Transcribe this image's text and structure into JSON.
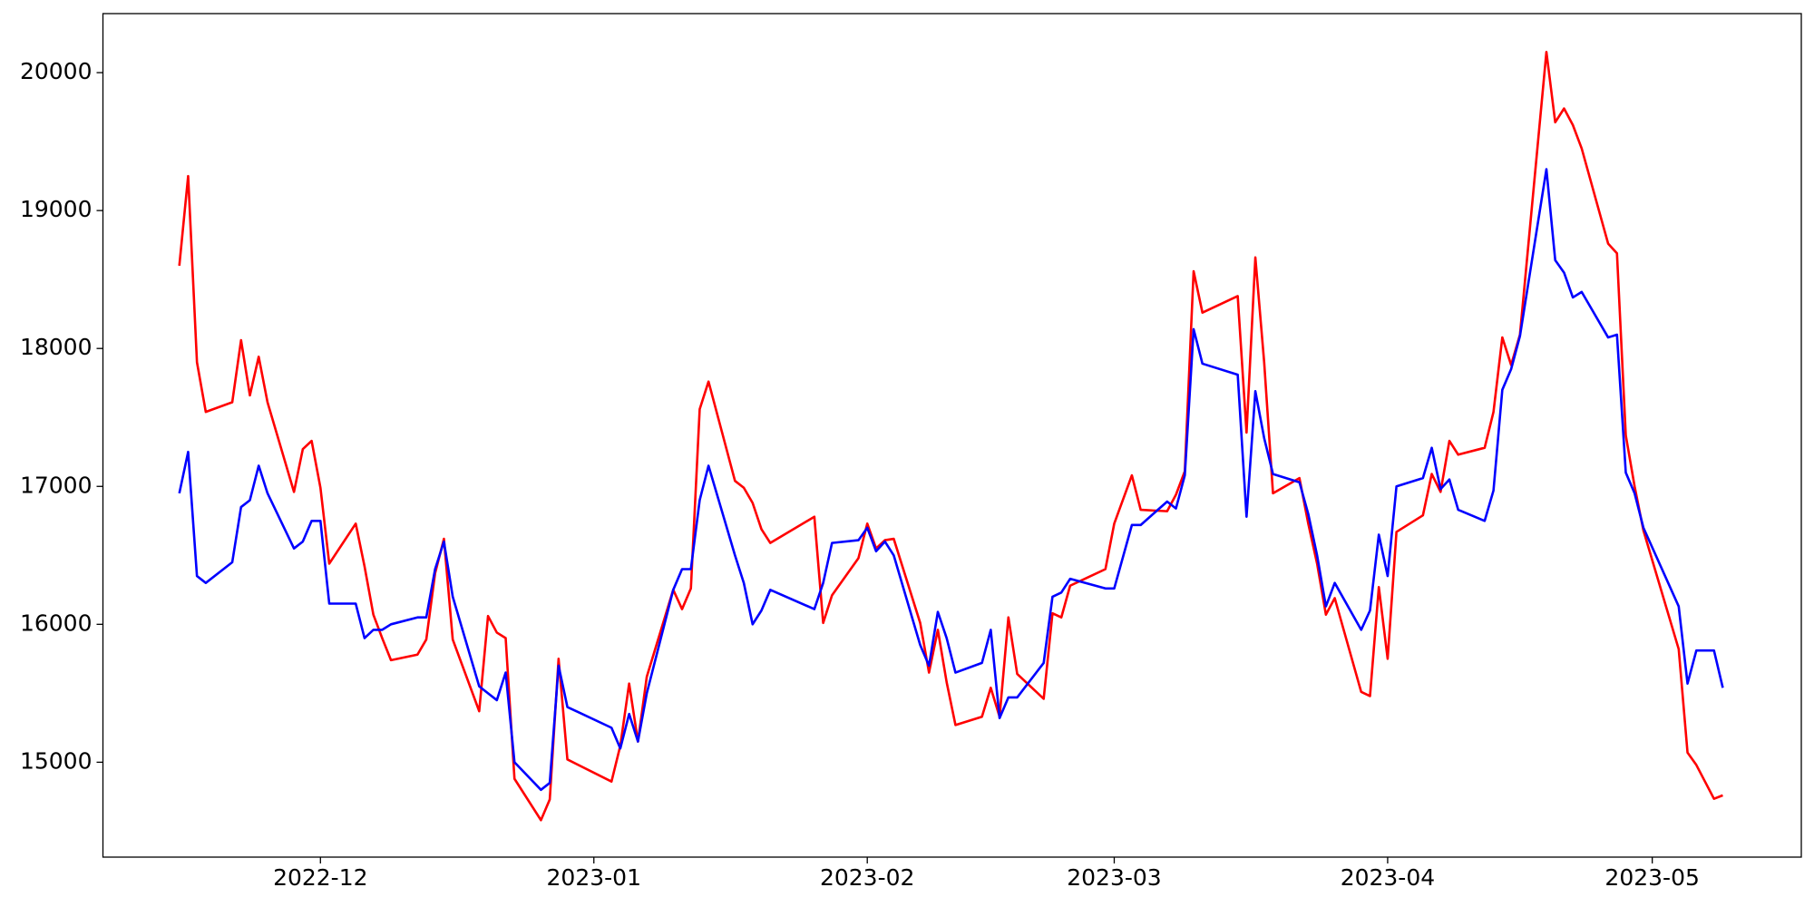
{
  "chart_data": {
    "type": "line",
    "x": [
      -16,
      -15,
      -14,
      -13,
      -10,
      -9,
      -8,
      -7,
      -6,
      -3,
      -2,
      -1,
      0,
      1,
      4,
      5,
      6,
      7,
      8,
      11,
      12,
      13,
      14,
      15,
      18,
      19,
      20,
      21,
      22,
      25,
      26,
      27,
      28,
      33,
      34,
      35,
      36,
      37,
      40,
      41,
      42,
      43,
      44,
      47,
      48,
      49,
      50,
      51,
      56,
      57,
      58,
      61,
      62,
      63,
      64,
      65,
      68,
      69,
      70,
      71,
      72,
      75,
      76,
      77,
      78,
      79,
      82,
      83,
      84,
      85,
      89,
      90,
      92,
      93,
      96,
      97,
      98,
      99,
      100,
      104,
      105,
      106,
      107,
      108,
      111,
      112,
      113,
      114,
      115,
      118,
      119,
      120,
      121,
      122,
      125,
      126,
      127,
      128,
      129,
      132,
      133,
      134,
      135,
      136,
      139,
      140,
      141,
      142,
      143,
      146,
      147,
      148,
      149,
      150,
      154,
      155,
      156,
      158,
      159
    ],
    "series": [
      {
        "color": "#ff0000",
        "values": [
          18600,
          19250,
          17900,
          17540,
          17610,
          18060,
          17660,
          17940,
          17610,
          16960,
          17270,
          17330,
          16990,
          16440,
          16730,
          16420,
          16070,
          15900,
          15740,
          15780,
          15890,
          16370,
          16620,
          15890,
          15370,
          16060,
          15940,
          15900,
          14880,
          14580,
          14730,
          15750,
          15020,
          14860,
          15120,
          15570,
          15150,
          15620,
          16250,
          16110,
          16260,
          17560,
          17760,
          17040,
          16990,
          16880,
          16690,
          16590,
          16780,
          16010,
          16210,
          16480,
          16730,
          16550,
          16610,
          16620,
          16010,
          15650,
          15960,
          15580,
          15270,
          15330,
          15540,
          15330,
          16050,
          15640,
          15460,
          16080,
          16050,
          16280,
          16400,
          16730,
          17080,
          16830,
          16820,
          16940,
          17110,
          18560,
          18260,
          18380,
          17390,
          18660,
          17900,
          16950,
          17060,
          16730,
          16440,
          16070,
          16190,
          15510,
          15480,
          16270,
          15750,
          16670,
          16790,
          17090,
          16960,
          17330,
          17230,
          17280,
          17540,
          18080,
          17880,
          18100,
          20150,
          19640,
          19740,
          19620,
          19450,
          18760,
          18690,
          17370,
          17000,
          16680,
          15820,
          15070,
          14980,
          14735,
          14760
        ]
      },
      {
        "color": "#0000ff",
        "values": [
          16950,
          17250,
          16350,
          16300,
          16450,
          16850,
          16900,
          17150,
          16950,
          16550,
          16600,
          16750,
          16750,
          16150,
          16150,
          15900,
          15960,
          15960,
          16000,
          16050,
          16050,
          16400,
          16600,
          16200,
          15550,
          15500,
          15450,
          15650,
          15000,
          14800,
          14850,
          15700,
          15400,
          15250,
          15100,
          15350,
          15150,
          15500,
          16250,
          16400,
          16400,
          16900,
          17150,
          16500,
          16300,
          16000,
          16100,
          16250,
          16110,
          16300,
          16590,
          16610,
          16700,
          16530,
          16600,
          16500,
          15850,
          15700,
          16090,
          15900,
          15650,
          15720,
          15960,
          15320,
          15470,
          15470,
          15720,
          16200,
          16230,
          16330,
          16260,
          16260,
          16720,
          16720,
          16890,
          16840,
          17080,
          18140,
          17890,
          17810,
          16780,
          17690,
          17350,
          17090,
          17030,
          16800,
          16500,
          16130,
          16300,
          15960,
          16100,
          16650,
          16350,
          17000,
          17060,
          17280,
          16980,
          17050,
          16830,
          16750,
          16970,
          17700,
          17850,
          18090,
          19300,
          18640,
          18550,
          18370,
          18410,
          18080,
          18100,
          17100,
          16950,
          16700,
          16130,
          15570,
          15810,
          15810,
          15540
        ]
      }
    ],
    "xlim": [
      -24.66,
      167.9
    ],
    "xticks": [
      {
        "value": 0,
        "label": "2022-12"
      },
      {
        "value": 31,
        "label": "2023-01"
      },
      {
        "value": 62,
        "label": "2023-02"
      },
      {
        "value": 90,
        "label": "2023-03"
      },
      {
        "value": 121,
        "label": "2023-04"
      },
      {
        "value": 151,
        "label": "2023-05"
      }
    ],
    "ylim": [
      14312,
      20428
    ],
    "yticks": [
      15000,
      16000,
      17000,
      18000,
      19000,
      20000
    ],
    "grid": false
  }
}
